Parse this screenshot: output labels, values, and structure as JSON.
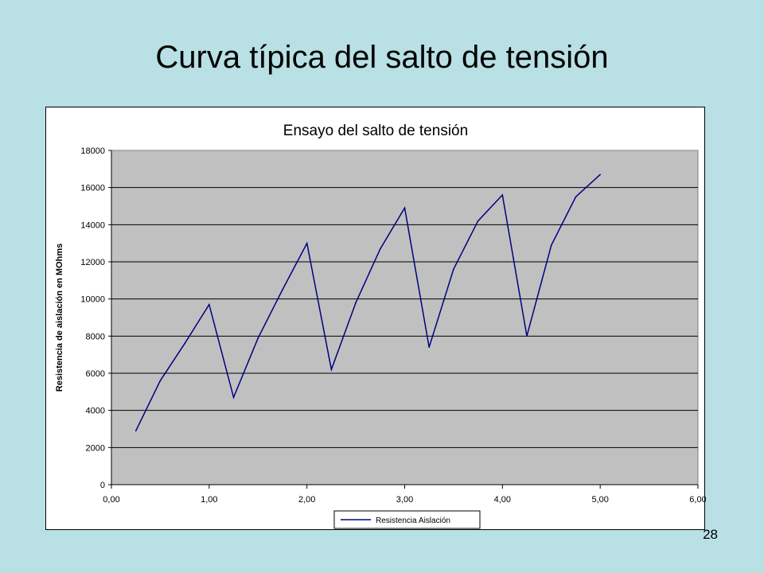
{
  "slide": {
    "title": "Curva típica del salto de tensión",
    "page_number": "28"
  },
  "colors": {
    "background": "#b9e0e4",
    "plot_area": "#c0c0c0",
    "series": "#000080"
  },
  "chart_data": {
    "type": "line",
    "title": "Ensayo del salto de tensión",
    "xlabel": "",
    "ylabel": "Resistencia de aislación en MOhms",
    "xlim": [
      0,
      6
    ],
    "ylim": [
      0,
      18000
    ],
    "x_ticks": [
      "0,00",
      "1,00",
      "2,00",
      "3,00",
      "4,00",
      "5,00",
      "6,00"
    ],
    "y_ticks": [
      "0",
      "2000",
      "4000",
      "6000",
      "8000",
      "10000",
      "12000",
      "14000",
      "16000",
      "18000"
    ],
    "grid": "horizontal",
    "legend_position": "bottom",
    "series": [
      {
        "name": "Resistencia Aislación",
        "x": [
          0.25,
          0.5,
          0.75,
          1.0,
          1.25,
          1.5,
          1.75,
          2.0,
          2.25,
          2.5,
          2.75,
          3.0,
          3.25,
          3.5,
          3.75,
          4.0,
          4.25,
          4.5,
          4.75,
          5.0
        ],
        "y": [
          2900,
          5600,
          7600,
          9700,
          4700,
          7900,
          10500,
          13000,
          6200,
          9800,
          12700,
          14900,
          7400,
          11600,
          14200,
          15600,
          8000,
          12900,
          15500,
          16700
        ]
      }
    ]
  }
}
